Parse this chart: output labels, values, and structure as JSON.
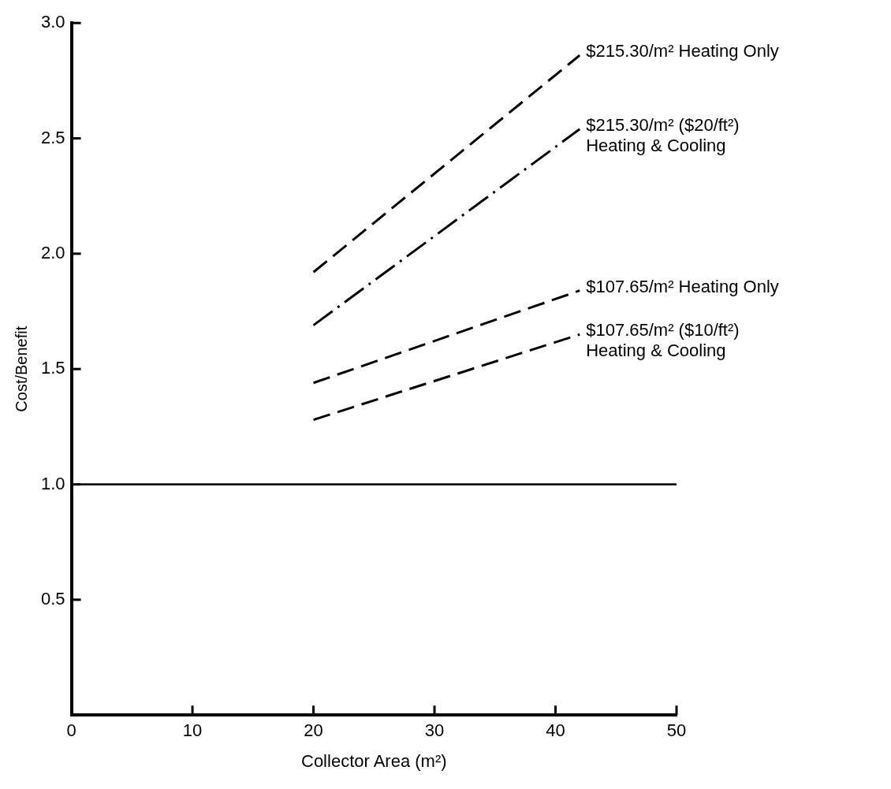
{
  "chart_data": {
    "type": "line",
    "xlabel": "Collector Area (m²)",
    "ylabel": "Cost/Benefit",
    "xlim": [
      0,
      50
    ],
    "xticks": [
      0,
      10,
      20,
      30,
      40,
      50
    ],
    "ylim": [
      0,
      3
    ],
    "yticks": [
      0.5,
      {
        "value": 1,
        "label": "1.0"
      },
      1.5,
      {
        "value": 2,
        "label": "2.0"
      },
      2.5,
      {
        "value": 3,
        "label": "3.0"
      }
    ],
    "x": [
      20,
      42
    ],
    "marker": "none",
    "legend": false,
    "series": [
      {
        "name": "$215.30/m² Heating Only",
        "color": "#000000",
        "line_style": "dashed",
        "values": [
          1.92,
          2.86
        ]
      },
      {
        "name": "$215.30/m² ($20/ft²)\nHeating & Cooling",
        "color": "#000000",
        "line_style": "dashdot",
        "values": [
          1.69,
          2.54
        ]
      },
      {
        "name": "$107.65/m² Heating Only",
        "color": "#000000",
        "line_style": "dashed",
        "values": [
          1.44,
          1.84
        ]
      },
      {
        "name": "$107.65/m² ($10/ft²)\nHeating & Cooling",
        "color": "#000000",
        "line_style": "dashed",
        "values": [
          1.28,
          1.65
        ]
      }
    ],
    "ref_lines": [
      {
        "axis": "y",
        "value": 1.0,
        "color": "#000000",
        "line_style": "solid"
      }
    ]
  }
}
